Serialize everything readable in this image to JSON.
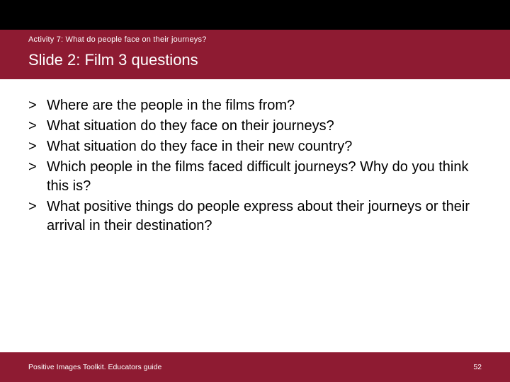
{
  "colors": {
    "brand": "#8e1b32",
    "top_bar": "#000000",
    "background": "#ffffff",
    "body_text": "#000000",
    "header_text": "#ffffff"
  },
  "typography": {
    "family": "Arial",
    "activity_fontsize": 11,
    "title_fontsize": 22,
    "body_fontsize": 20,
    "footer_fontsize": 10.5
  },
  "header": {
    "activity_label": "Activity 7: What do people face on their journeys?",
    "slide_title": "Slide 2: Film 3 questions"
  },
  "bullet_glyph": ">",
  "questions": [
    "Where are the people in the films from?",
    "What situation do they face on their journeys?",
    "What situation do they face in their new country?",
    "Which people in the films faced difficult journeys? Why do you think this is?",
    "What positive things do people express about their journeys or their arrival in their destination?"
  ],
  "footer": {
    "left": "Positive Images Toolkit. Educators guide",
    "page_number": "52"
  }
}
